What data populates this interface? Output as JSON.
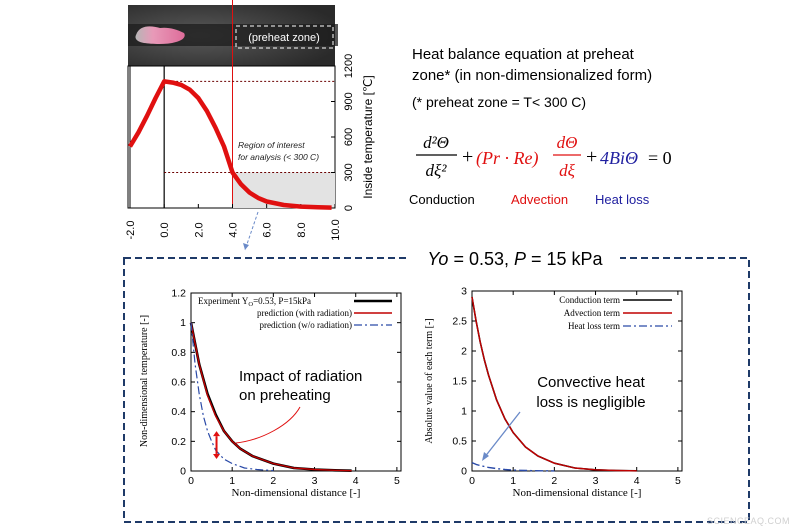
{
  "top_figure": {
    "preheat_zone_label": "(preheat zone)",
    "region_note": [
      "Region of interest",
      "for analysis (< 300 C)"
    ],
    "ylabel": "Inside temperature [℃]",
    "chart_data": {
      "type": "line",
      "x_ticks": [
        "-2.0",
        "0.0",
        "2.0",
        "4.0",
        "6.0",
        "8.0",
        "10.0"
      ],
      "y_ticks": [
        "0",
        "300",
        "600",
        "900",
        "1200"
      ],
      "xlim": [
        -2,
        10
      ],
      "ylim": [
        0,
        1200
      ],
      "series": [
        {
          "color": "#e01010",
          "x": [
            -2.0,
            -1.5,
            -1.0,
            -0.5,
            0.0,
            0.5,
            1.0,
            1.5,
            2.0,
            2.5,
            3.0,
            3.5,
            4.0,
            4.5,
            5.0,
            5.5,
            6.0,
            7.0,
            8.0,
            9.0,
            9.8
          ],
          "y": [
            520,
            640,
            780,
            930,
            1070,
            1060,
            1040,
            1000,
            930,
            820,
            680,
            520,
            300,
            200,
            130,
            85,
            55,
            25,
            12,
            6,
            3
          ]
        }
      ]
    }
  },
  "equation_block": {
    "heading": [
      "Heat balance equation at preheat",
      "zone* (in non-dimensionalized form)"
    ],
    "footnote": "(* preheat zone = T< 300 C)",
    "terms": {
      "conduction_num": "d²Θ",
      "conduction_den": "dξ²",
      "plus1": "+",
      "advection_coef": "(Pr · Re)",
      "advection_num": "dΘ",
      "advection_den": "dξ",
      "plus2": "+",
      "heatloss": "4BiΘ",
      "rhs": "= 0"
    },
    "labels": {
      "conduction": "Conduction",
      "advection": "Advection",
      "heatloss": "Heat loss"
    },
    "colors": {
      "conduction": "#000000",
      "advection": "#e01010",
      "heatloss": "#2020a0"
    }
  },
  "panel": {
    "title_parts": [
      "Yo",
      " = 0.53, ",
      "P",
      " = 15 kPa"
    ],
    "border_color": "#1f3a68"
  },
  "left_chart": {
    "ylabel": "Non-dimensional temperature [-]",
    "xlabel": "Non-dimensional distance [-]",
    "annotation": [
      "Impact of radiation",
      "on preheating"
    ],
    "legend": [
      "Experiment Y",
      "O",
      "=0.53, P=15kPa",
      "prediction (with radiation)",
      "prediction (w/o radiation)"
    ],
    "chart_data": {
      "type": "line",
      "x_ticks": [
        "0",
        "1",
        "2",
        "3",
        "4",
        "5"
      ],
      "y_ticks": [
        "0",
        "0.2",
        "0.4",
        "0.6",
        "0.8",
        "1",
        "1.2"
      ],
      "xlim": [
        0,
        5.1
      ],
      "ylim": [
        0,
        1.2
      ],
      "series": [
        {
          "color": "#000000",
          "x": [
            0,
            0.2,
            0.4,
            0.6,
            0.8,
            1.0,
            1.2,
            1.5,
            2.0,
            2.5,
            3.0,
            3.5,
            3.9
          ],
          "y": [
            1.0,
            0.72,
            0.52,
            0.38,
            0.27,
            0.2,
            0.15,
            0.1,
            0.05,
            0.02,
            0.01,
            0.005,
            0.002
          ]
        },
        {
          "color": "#c00000",
          "x": [
            0,
            0.2,
            0.4,
            0.6,
            0.8,
            1.0,
            1.2,
            1.5,
            2.0,
            2.5,
            3.0,
            3.5,
            3.9
          ],
          "y": [
            1.0,
            0.72,
            0.51,
            0.37,
            0.27,
            0.2,
            0.15,
            0.1,
            0.05,
            0.02,
            0.01,
            0.005,
            0.002
          ]
        },
        {
          "color": "#2a4aa8",
          "dash": "8,3,2,3",
          "x": [
            0,
            0.1,
            0.2,
            0.3,
            0.4,
            0.5,
            0.6,
            0.8,
            1.0,
            1.3,
            1.6,
            2.0
          ],
          "y": [
            1.0,
            0.72,
            0.52,
            0.37,
            0.27,
            0.2,
            0.14,
            0.08,
            0.05,
            0.02,
            0.01,
            0.003
          ]
        }
      ]
    }
  },
  "right_chart": {
    "ylabel": "Absolute value of each term [-]",
    "xlabel": "Non-dimensional distance [-]",
    "annotation": [
      "Convective heat",
      "loss is negligible"
    ],
    "legend": [
      "Conduction term",
      "Advection term",
      "Heat loss term"
    ],
    "chart_data": {
      "type": "line",
      "x_ticks": [
        "0",
        "1",
        "2",
        "3",
        "4",
        "5"
      ],
      "y_ticks": [
        "0",
        "0.5",
        "1",
        "1.5",
        "2",
        "2.5",
        "3"
      ],
      "xlim": [
        0,
        5.1
      ],
      "ylim": [
        0,
        3
      ],
      "series": [
        {
          "color": "#000000",
          "x": [
            0,
            0.1,
            0.2,
            0.3,
            0.4,
            0.6,
            0.8,
            1.0,
            1.3,
            1.6,
            2.0,
            2.5,
            3.0,
            3.5,
            4.0
          ],
          "y": [
            2.9,
            2.5,
            2.15,
            1.85,
            1.6,
            1.18,
            0.87,
            0.64,
            0.4,
            0.25,
            0.13,
            0.05,
            0.02,
            0.008,
            0.003
          ]
        },
        {
          "color": "#c00000",
          "x": [
            0,
            0.1,
            0.2,
            0.3,
            0.4,
            0.6,
            0.8,
            1.0,
            1.3,
            1.6,
            2.0,
            2.5,
            3.0,
            3.5,
            4.0
          ],
          "y": [
            2.9,
            2.5,
            2.15,
            1.85,
            1.6,
            1.18,
            0.87,
            0.64,
            0.4,
            0.25,
            0.13,
            0.05,
            0.02,
            0.008,
            0.003
          ]
        },
        {
          "color": "#2a4aa8",
          "dash": "8,3,2,3",
          "x": [
            0,
            0.1,
            0.2,
            0.4,
            0.6,
            0.8,
            1.0,
            1.5,
            2.0
          ],
          "y": [
            0.14,
            0.11,
            0.09,
            0.06,
            0.04,
            0.025,
            0.015,
            0.005,
            0.001
          ]
        }
      ]
    }
  },
  "watermark": "SCIENCEAQ.COM"
}
